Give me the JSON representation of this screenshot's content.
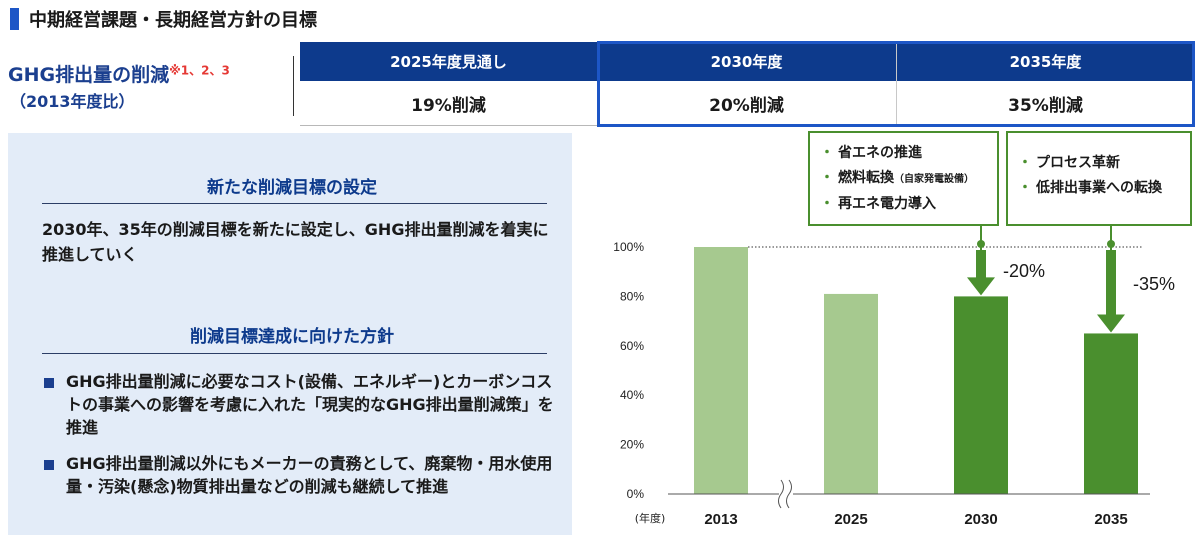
{
  "header": {
    "title": "中期経営課題・長期経営方針の目標"
  },
  "ghg": {
    "title": "GHG排出量の削減",
    "note": "※1、2、3",
    "base": "（2013年度比）"
  },
  "targets_table": {
    "columns": [
      {
        "label": "2025年度見通し",
        "value": "19%削減"
      },
      {
        "label": "2030年度",
        "value": "20%削減"
      },
      {
        "label": "2035年度",
        "value": "35%削減"
      }
    ]
  },
  "left_panel": {
    "section1_title": "新たな削減目標の設定",
    "section1_body": "2030年、35年の削減目標を新たに設定し、GHG排出量削減を着実に推進していく",
    "section2_title": "削減目標達成に向けた方針",
    "bullets": [
      "GHG排出量削減に必要なコスト(設備、エネルギー)とカーボンコストの事業への影響を考慮に入れた「現実的なGHG排出量削減策」を推進",
      "GHG排出量削減以外にもメーカーの責務として、廃棄物・用水使用量・汚染(懸念)物質排出量などの削減も継続して推進"
    ]
  },
  "callouts": {
    "c2030": {
      "items": [
        {
          "text": "省エネの推進",
          "small": ""
        },
        {
          "text": "燃料転換",
          "small": "（自家発電設備）"
        },
        {
          "text": "再エネ電力導入",
          "small": ""
        }
      ]
    },
    "c2035": {
      "items": [
        {
          "text": "プロセス革新",
          "small": ""
        },
        {
          "text": "低排出事業への転換",
          "small": ""
        }
      ]
    }
  },
  "chart_data": {
    "type": "bar",
    "categories": [
      "2013",
      "2025",
      "2030",
      "2035"
    ],
    "values": [
      100,
      81,
      80,
      65
    ],
    "ylim": [
      0,
      100
    ],
    "yticks": [
      "0%",
      "20%",
      "40%",
      "60%",
      "80%",
      "100%"
    ],
    "xlabel_unit": "(年度)",
    "axis_break_between": [
      "2013",
      "2025"
    ],
    "reference_line": 100,
    "annotations": [
      {
        "category": "2030",
        "text": "-20%"
      },
      {
        "category": "2035",
        "text": "-35%"
      }
    ],
    "colors": {
      "light": "#a6c98f",
      "dark": "#4a8f2e"
    },
    "highlighted_categories": [
      "2030",
      "2035"
    ]
  }
}
